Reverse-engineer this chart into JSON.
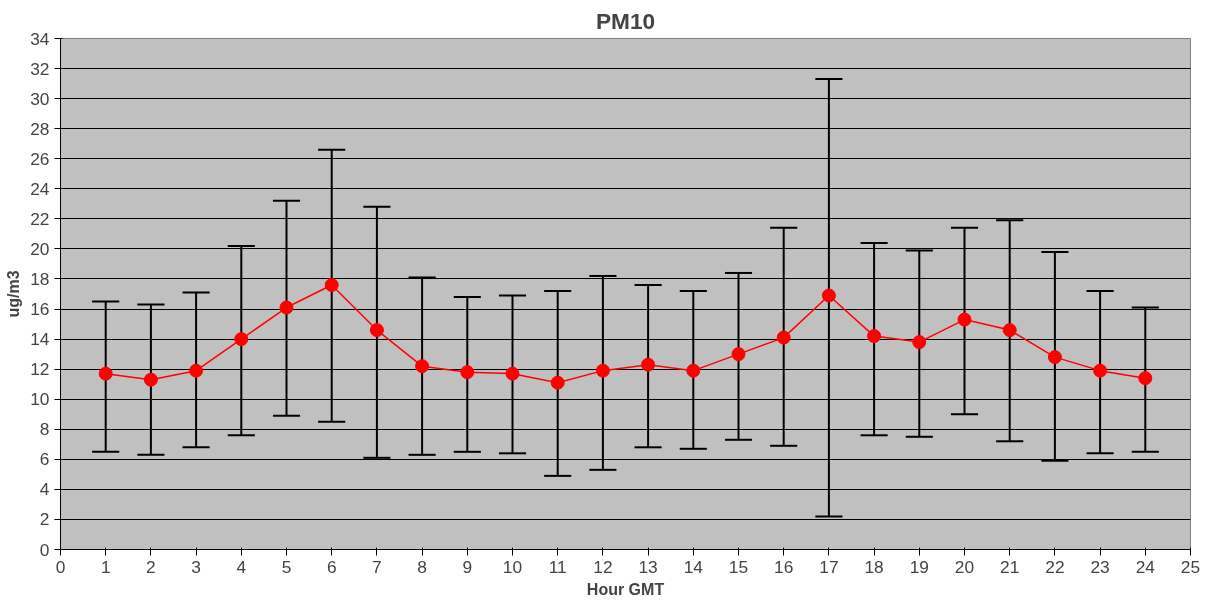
{
  "chart_data": {
    "type": "line",
    "title": "PM10",
    "xlabel": "Hour GMT",
    "ylabel": "ug/m3",
    "x": [
      1,
      2,
      3,
      4,
      5,
      6,
      7,
      8,
      9,
      10,
      11,
      12,
      13,
      14,
      15,
      16,
      17,
      18,
      19,
      20,
      21,
      22,
      23,
      24
    ],
    "series": [
      {
        "color": "#ff0000",
        "values": [
          11.7,
          11.3,
          11.9,
          14.0,
          16.1,
          17.6,
          14.6,
          12.2,
          11.8,
          11.7,
          11.1,
          11.9,
          12.3,
          11.9,
          13.0,
          14.1,
          16.9,
          14.2,
          13.8,
          15.3,
          14.6,
          12.8,
          11.9,
          11.4
        ],
        "errors": [
          [
            6.5,
            16.5
          ],
          [
            6.3,
            16.3
          ],
          [
            6.8,
            17.1
          ],
          [
            7.6,
            20.2
          ],
          [
            8.9,
            23.2
          ],
          [
            8.5,
            26.6
          ],
          [
            6.1,
            22.8
          ],
          [
            6.3,
            18.1
          ],
          [
            6.5,
            16.8
          ],
          [
            6.4,
            16.9
          ],
          [
            4.9,
            17.2
          ],
          [
            5.3,
            18.2
          ],
          [
            6.8,
            17.6
          ],
          [
            6.7,
            17.2
          ],
          [
            7.3,
            18.4
          ],
          [
            6.9,
            21.4
          ],
          [
            2.2,
            31.3
          ],
          [
            7.6,
            20.4
          ],
          [
            7.5,
            19.9
          ],
          [
            9.0,
            21.4
          ],
          [
            7.2,
            21.9
          ],
          [
            5.9,
            19.8
          ],
          [
            6.4,
            17.2
          ],
          [
            6.5,
            16.1
          ]
        ]
      }
    ],
    "xlim": [
      0,
      25
    ],
    "xticks": [
      0,
      1,
      2,
      3,
      4,
      5,
      6,
      7,
      8,
      9,
      10,
      11,
      12,
      13,
      14,
      15,
      16,
      17,
      18,
      19,
      20,
      21,
      22,
      23,
      24,
      25
    ],
    "ylim": [
      0,
      34
    ],
    "yticks": [
      0,
      2,
      4,
      6,
      8,
      10,
      12,
      14,
      16,
      18,
      20,
      22,
      24,
      26,
      28,
      30,
      32,
      34
    ],
    "grid": "y",
    "marker": "circle",
    "line_style": "solid"
  }
}
